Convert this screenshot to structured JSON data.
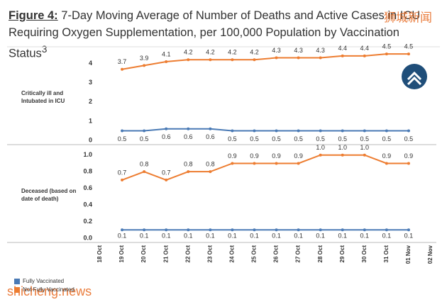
{
  "header": {
    "figure_label": "Figure 4:",
    "title": "7-Day Moving Average of Number of Deaths and Active Cases in ICU Requiring Oxygen Supplementation, per 100,000 Population by Vaccination Status",
    "superscript": "3"
  },
  "chart_data": [
    {
      "type": "line",
      "panel_label": "Critically ill and Intubated in ICU",
      "ylim": [
        0,
        4.8
      ],
      "yticks": [
        0,
        1,
        2,
        3,
        4
      ],
      "series": [
        {
          "color": "#4a7ab5",
          "values": [
            null,
            0.5,
            0.5,
            0.6,
            0.6,
            0.6,
            0.5,
            0.5,
            0.5,
            0.5,
            0.5,
            0.5,
            0.5,
            0.5,
            0.5,
            null
          ]
        },
        {
          "color": "#ed7d31",
          "values": [
            null,
            3.7,
            3.9,
            4.1,
            4.2,
            4.2,
            4.2,
            4.2,
            4.3,
            4.3,
            4.3,
            4.4,
            4.4,
            4.5,
            4.5,
            null
          ]
        }
      ]
    },
    {
      "type": "line",
      "panel_label": "Deceased (based on date of death)",
      "categories": [
        "18 Oct",
        "19 Oct",
        "20 Oct",
        "21 Oct",
        "22 Oct",
        "23 Oct",
        "24 Oct",
        "25 Oct",
        "26 Oct",
        "27 Oct",
        "28 Oct",
        "29 Oct",
        "30 Oct",
        "31 Oct",
        "01 Nov",
        "02 Nov"
      ],
      "ylim": [
        0,
        1.1
      ],
      "yticks": [
        {
          "value": 0,
          "label": "0.0"
        },
        0.2,
        0.4,
        0.6,
        0.8,
        {
          "value": 1,
          "label": "1.0"
        }
      ],
      "series": [
        {
          "name": "Fully Vaccinated",
          "color": "#4a7ab5",
          "values": [
            null,
            0.1,
            0.1,
            0.1,
            0.1,
            0.1,
            0.1,
            0.1,
            0.1,
            0.1,
            0.1,
            0.1,
            0.1,
            0.1,
            0.1,
            null
          ]
        },
        {
          "name": "Not Fully Vaccinated",
          "color": "#ed7d31",
          "values": [
            null,
            0.7,
            0.8,
            0.7,
            0.8,
            0.8,
            0.9,
            0.9,
            0.9,
            0.9,
            1,
            1,
            1,
            0.9,
            0.9,
            null
          ],
          "value_labels": [
            null,
            "0.7",
            "0.8",
            "0.7",
            "0.8",
            "0.8",
            "0.9",
            "0.9",
            "0.9",
            "0.9",
            "1.0",
            "1.0",
            "1.0",
            "0.9",
            "0.9",
            null
          ]
        }
      ]
    }
  ],
  "watermarks": [
    "狮城新闻",
    "shicheng.news"
  ]
}
